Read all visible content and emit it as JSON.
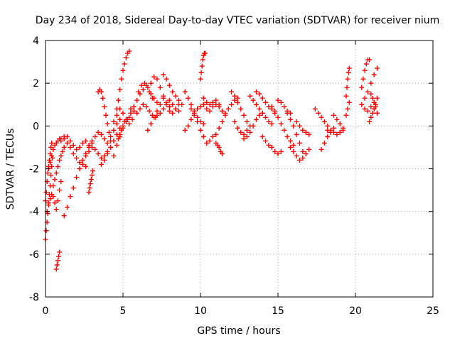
{
  "chart_data": {
    "type": "scatter",
    "title": "Day 234 of 2018, Sidereal Day-to-day VTEC variation (SDTVAR) for receiver nium",
    "xlabel": "GPS time / hours",
    "ylabel": "SDTVAR / TECUs",
    "xlim": [
      0,
      25
    ],
    "ylim": [
      -8,
      4
    ],
    "xticks": [
      0,
      5,
      10,
      15,
      20,
      25
    ],
    "yticks": [
      -8,
      -6,
      -4,
      -2,
      0,
      2,
      4
    ],
    "xtick_labels": [
      "0",
      "5",
      "10",
      "15",
      "20",
      "25"
    ],
    "ytick_labels": [
      "-8",
      "-6",
      "-4",
      "-2",
      "0",
      "2",
      "4"
    ],
    "grid": true,
    "marker": "+",
    "color": "#ff0000",
    "series": [
      {
        "name": "t0",
        "x": [
          0.0,
          0.05,
          0.1,
          0.15,
          0.2,
          0.25,
          0.3,
          0.35,
          0.4,
          0.45
        ],
        "y": [
          -5.3,
          -4.9,
          -4.5,
          -4.1,
          -3.6,
          -3.2,
          -2.8,
          -2.3,
          -1.9,
          -1.5
        ]
      },
      {
        "name": "t1",
        "x": [
          0.0,
          0.05,
          0.1,
          0.15,
          0.2,
          0.25,
          0.3,
          0.35,
          0.4
        ],
        "y": [
          -3.5,
          -3.1,
          -2.6,
          -2.2,
          -1.9,
          -1.6,
          -1.3,
          -1.0,
          -0.8
        ]
      },
      {
        "name": "t2",
        "x": [
          0.1,
          0.2,
          0.3,
          0.4,
          0.5,
          0.6,
          0.7,
          0.8,
          0.9,
          1.0
        ],
        "y": [
          -4.0,
          -3.7,
          -3.4,
          -3.2,
          -3.3,
          -3.6,
          -3.9,
          -3.5,
          -3.0,
          -2.6
        ]
      },
      {
        "name": "t3",
        "x": [
          0.2,
          0.3,
          0.4,
          0.5,
          0.6,
          0.7,
          0.8,
          0.9,
          1.0
        ],
        "y": [
          -2.0,
          -1.7,
          -1.4,
          -1.1,
          -0.9,
          -0.8,
          -0.7,
          -0.6,
          -0.6
        ]
      },
      {
        "name": "t4",
        "x": [
          0.7,
          0.75,
          0.8,
          0.85,
          0.9
        ],
        "y": [
          -6.7,
          -6.5,
          -6.3,
          -6.1,
          -5.9
        ]
      },
      {
        "name": "t5",
        "x": [
          0.5,
          0.6,
          0.7,
          0.8,
          0.9,
          1.0,
          1.1,
          1.2
        ],
        "y": [
          -2.8,
          -2.5,
          -2.2,
          -1.9,
          -1.6,
          -1.4,
          -1.2,
          -1.0
        ]
      },
      {
        "name": "t6",
        "x": [
          1.2,
          1.4,
          1.6,
          1.8,
          2.0,
          2.2,
          2.4,
          2.6,
          2.8,
          3.0
        ],
        "y": [
          -4.2,
          -3.8,
          -3.3,
          -2.9,
          -2.4,
          -2.0,
          -1.6,
          -1.3,
          -1.0,
          -0.8
        ]
      },
      {
        "name": "t7",
        "x": [
          1.2,
          1.4,
          1.6,
          1.8,
          2.0,
          2.2,
          2.4,
          2.6
        ],
        "y": [
          -0.5,
          -0.8,
          -1.0,
          -1.3,
          -1.5,
          -1.7,
          -1.8,
          -1.9
        ]
      },
      {
        "name": "t8",
        "x": [
          1.0,
          1.2,
          1.4,
          1.6,
          1.8,
          2.0,
          2.2,
          2.4,
          2.6,
          2.8
        ],
        "y": [
          -0.7,
          -0.6,
          -0.5,
          -0.7,
          -0.9,
          -1.1,
          -1.0,
          -0.8,
          -0.7,
          -0.9
        ]
      },
      {
        "name": "t9",
        "x": [
          2.8,
          2.85,
          2.9,
          2.95,
          3.0,
          3.05
        ],
        "y": [
          -3.1,
          -2.9,
          -2.7,
          -2.5,
          -2.3,
          -2.1
        ]
      },
      {
        "name": "t10",
        "x": [
          2.6,
          2.8,
          3.0,
          3.2,
          3.4,
          3.6,
          3.8,
          4.0,
          4.2
        ],
        "y": [
          -1.4,
          -1.2,
          -1.0,
          -1.1,
          -1.3,
          -1.5,
          -1.4,
          -1.2,
          -1.0
        ]
      },
      {
        "name": "t11",
        "x": [
          3.4,
          3.5,
          3.6,
          3.7,
          3.8,
          3.9,
          4.0,
          4.1,
          4.2
        ],
        "y": [
          1.6,
          1.7,
          1.6,
          1.3,
          0.9,
          0.5,
          0.1,
          -0.3,
          -0.7
        ]
      },
      {
        "name": "t12",
        "x": [
          3.0,
          3.2,
          3.4,
          3.6,
          3.8,
          4.0,
          4.2,
          4.4,
          4.6,
          4.8
        ],
        "y": [
          -0.7,
          -0.5,
          -0.3,
          -0.4,
          -0.6,
          -0.8,
          -0.5,
          -0.2,
          0.1,
          0.3
        ]
      },
      {
        "name": "t13",
        "x": [
          3.6,
          3.8,
          4.0,
          4.2,
          4.4,
          4.6,
          4.8
        ],
        "y": [
          -1.8,
          -1.6,
          -1.3,
          -1.0,
          -0.7,
          -0.4,
          -0.1
        ]
      },
      {
        "name": "t14",
        "x": [
          4.4,
          4.6,
          4.8,
          5.0,
          5.2,
          5.4
        ],
        "y": [
          0.2,
          0.5,
          0.8,
          0.6,
          0.3,
          0.1
        ]
      },
      {
        "name": "t15",
        "x": [
          4.6,
          4.7,
          4.8,
          4.9,
          5.0,
          5.1,
          5.2,
          5.3,
          5.4
        ],
        "y": [
          0.8,
          1.2,
          1.7,
          2.2,
          2.6,
          2.9,
          3.2,
          3.4,
          3.5
        ]
      },
      {
        "name": "t16",
        "x": [
          4.4,
          4.6,
          4.8,
          5.0,
          5.2,
          5.4,
          5.6
        ],
        "y": [
          -1.4,
          -0.9,
          -0.5,
          -0.1,
          0.2,
          0.4,
          0.3
        ]
      },
      {
        "name": "t17",
        "x": [
          4.7,
          4.8,
          4.9,
          5.0,
          5.1
        ],
        "y": [
          -0.6,
          -0.4,
          -0.2,
          0.0,
          0.2
        ]
      },
      {
        "name": "t18",
        "x": [
          5.3,
          5.5,
          5.7,
          5.9,
          6.1,
          6.3,
          6.5,
          6.7,
          6.9
        ],
        "y": [
          0.3,
          0.6,
          0.9,
          1.2,
          1.5,
          1.7,
          1.9,
          1.6,
          1.3
        ]
      },
      {
        "name": "t19",
        "x": [
          5.5,
          5.7,
          5.9,
          6.1,
          6.3,
          6.5,
          6.7,
          6.9,
          7.1
        ],
        "y": [
          0.8,
          0.7,
          0.6,
          0.8,
          1.0,
          0.9,
          0.7,
          0.5,
          0.4
        ]
      },
      {
        "name": "t20",
        "x": [
          6.0,
          6.2,
          6.4,
          6.6,
          6.8,
          7.0,
          7.2
        ],
        "y": [
          1.6,
          1.9,
          2.0,
          1.8,
          1.5,
          1.3,
          1.1
        ]
      },
      {
        "name": "t21",
        "x": [
          6.8,
          7.0,
          7.2,
          7.4,
          7.6,
          7.8,
          8.0
        ],
        "y": [
          2.0,
          2.3,
          2.2,
          1.8,
          1.4,
          1.1,
          0.9
        ]
      },
      {
        "name": "t22",
        "x": [
          6.6,
          6.8,
          7.0,
          7.2,
          7.4,
          7.6
        ],
        "y": [
          -0.2,
          0.1,
          0.4,
          0.7,
          1.0,
          1.3
        ]
      },
      {
        "name": "t23",
        "x": [
          7.2,
          7.4,
          7.6,
          7.8,
          8.0,
          8.2,
          8.4,
          8.6
        ],
        "y": [
          0.5,
          0.6,
          0.8,
          1.0,
          1.2,
          1.0,
          0.8,
          0.7
        ]
      },
      {
        "name": "t24",
        "x": [
          7.6,
          7.8,
          8.0,
          8.2,
          8.4,
          8.6,
          8.8
        ],
        "y": [
          2.4,
          2.2,
          1.9,
          1.6,
          1.4,
          1.2,
          1.0
        ]
      },
      {
        "name": "t25",
        "x": [
          8.0,
          8.2,
          8.4,
          8.6
        ],
        "y": [
          0.7,
          0.6,
          0.8,
          1.0
        ]
      },
      {
        "name": "t26",
        "x": [
          9.0,
          9.2,
          9.4,
          9.6,
          9.8,
          10.0,
          10.2
        ],
        "y": [
          1.6,
          1.3,
          1.0,
          0.7,
          0.4,
          0.2,
          0.1
        ]
      },
      {
        "name": "t27",
        "x": [
          9.0,
          9.2,
          9.4,
          9.6,
          9.8,
          10.0,
          10.2
        ],
        "y": [
          -0.2,
          0.0,
          0.3,
          0.6,
          0.8,
          0.9,
          1.0
        ]
      },
      {
        "name": "t28",
        "x": [
          9.4,
          9.6,
          9.8,
          10.0,
          10.2,
          10.4,
          10.6,
          10.8
        ],
        "y": [
          0.8,
          0.5,
          0.2,
          -0.2,
          -0.5,
          -0.8,
          -0.7,
          -0.5
        ]
      },
      {
        "name": "t29",
        "x": [
          10.0,
          10.05,
          10.1,
          10.15,
          10.2,
          10.25,
          10.3
        ],
        "y": [
          2.2,
          2.5,
          2.8,
          3.1,
          3.3,
          3.4,
          3.4
        ]
      },
      {
        "name": "t30",
        "x": [
          10.2,
          10.4,
          10.6,
          10.8,
          11.0,
          11.2
        ],
        "y": [
          1.3,
          1.1,
          1.0,
          1.1,
          1.2,
          1.0
        ]
      },
      {
        "name": "t31",
        "x": [
          10.4,
          10.6,
          10.8,
          11.0,
          11.2,
          11.4,
          11.6
        ],
        "y": [
          0.8,
          0.7,
          0.9,
          1.0,
          0.9,
          0.7,
          0.6
        ]
      },
      {
        "name": "t32",
        "x": [
          11.0,
          11.2,
          11.4,
          11.6,
          11.8,
          12.0,
          12.2,
          12.4
        ],
        "y": [
          -0.4,
          -0.1,
          0.2,
          0.5,
          0.8,
          1.0,
          1.2,
          1.3
        ]
      },
      {
        "name": "t33",
        "x": [
          11.0,
          11.1,
          11.2,
          11.3,
          11.4
        ],
        "y": [
          -0.8,
          -0.9,
          -1.0,
          -1.2,
          -1.3
        ]
      },
      {
        "name": "t34",
        "x": [
          12.0,
          12.2,
          12.4,
          12.6,
          12.8,
          13.0
        ],
        "y": [
          1.6,
          1.4,
          1.1,
          0.8,
          0.5,
          0.2
        ]
      },
      {
        "name": "t35",
        "x": [
          12.2,
          12.4,
          12.6,
          12.8,
          13.0,
          13.2
        ],
        "y": [
          0.2,
          -0.1,
          -0.3,
          -0.4,
          -0.2,
          0.0
        ]
      },
      {
        "name": "t36",
        "x": [
          12.8,
          13.0,
          13.2,
          13.4,
          13.6,
          13.8,
          14.0
        ],
        "y": [
          -0.6,
          -0.5,
          -0.3,
          0.0,
          0.3,
          0.5,
          0.6
        ]
      },
      {
        "name": "t37",
        "x": [
          13.2,
          13.4,
          13.6,
          13.8,
          14.0,
          14.2,
          14.4,
          14.6
        ],
        "y": [
          1.4,
          1.2,
          1.0,
          0.8,
          0.6,
          0.4,
          0.2,
          0.1
        ]
      },
      {
        "name": "t38",
        "x": [
          13.6,
          13.8,
          14.0,
          14.2,
          14.4,
          14.6,
          14.8
        ],
        "y": [
          1.6,
          1.5,
          1.3,
          1.1,
          0.9,
          0.8,
          0.6
        ]
      },
      {
        "name": "t39",
        "x": [
          14.0,
          14.2,
          14.4,
          14.6,
          14.8,
          15.0,
          15.2
        ],
        "y": [
          -0.5,
          -0.7,
          -0.9,
          -1.0,
          -1.2,
          -1.3,
          -1.2
        ]
      },
      {
        "name": "t40",
        "x": [
          14.6,
          14.8,
          15.0,
          15.2,
          15.4,
          15.6,
          15.8,
          16.0
        ],
        "y": [
          0.9,
          0.7,
          0.4,
          0.1,
          -0.2,
          -0.5,
          -0.7,
          -0.9
        ]
      },
      {
        "name": "t41",
        "x": [
          15.0,
          15.2,
          15.4,
          15.6,
          15.8
        ],
        "y": [
          1.2,
          1.1,
          0.9,
          0.7,
          0.6
        ]
      },
      {
        "name": "t42",
        "x": [
          15.6,
          15.8,
          16.0,
          16.2,
          16.4,
          16.6
        ],
        "y": [
          0.6,
          0.3,
          0.0,
          -0.4,
          -0.8,
          -1.2
        ]
      },
      {
        "name": "t43",
        "x": [
          15.8,
          16.0,
          16.2,
          16.4,
          16.6,
          16.8,
          17.0
        ],
        "y": [
          -1.0,
          -1.2,
          -1.4,
          -1.6,
          -1.5,
          -1.3,
          -1.1
        ]
      },
      {
        "name": "t44",
        "x": [
          16.2,
          16.4,
          16.6,
          16.8,
          17.0
        ],
        "y": [
          0.2,
          0.0,
          -0.2,
          -0.3,
          -0.4
        ]
      },
      {
        "name": "t45",
        "x": [
          17.4,
          17.6,
          17.8,
          18.0,
          18.2,
          18.4
        ],
        "y": [
          0.8,
          0.6,
          0.4,
          0.2,
          0.0,
          -0.2
        ]
      },
      {
        "name": "t46",
        "x": [
          17.8,
          18.0,
          18.2,
          18.4,
          18.6
        ],
        "y": [
          -1.1,
          -0.8,
          -0.5,
          -0.3,
          -0.1
        ]
      },
      {
        "name": "t47",
        "x": [
          18.2,
          18.4,
          18.6,
          18.8,
          19.0,
          19.2
        ],
        "y": [
          -0.2,
          -0.3,
          -0.3,
          -0.4,
          -0.3,
          -0.2
        ]
      },
      {
        "name": "t48",
        "x": [
          18.6,
          18.8,
          19.0,
          19.2
        ],
        "y": [
          0.5,
          0.3,
          0.1,
          -0.1
        ]
      },
      {
        "name": "t49",
        "x": [
          19.4,
          19.45,
          19.5,
          19.55,
          19.6
        ],
        "y": [
          1.4,
          1.8,
          2.2,
          2.5,
          2.7
        ]
      },
      {
        "name": "t50",
        "x": [
          19.4,
          19.5,
          19.6
        ],
        "y": [
          0.5,
          0.8,
          1.1
        ]
      },
      {
        "name": "t51",
        "x": [
          20.4,
          20.5,
          20.6,
          20.7,
          20.8,
          20.9
        ],
        "y": [
          1.8,
          2.2,
          2.6,
          2.9,
          3.1,
          3.1
        ]
      },
      {
        "name": "t52",
        "x": [
          20.6,
          20.8,
          21.0,
          21.2,
          21.4
        ],
        "y": [
          1.3,
          1.6,
          2.0,
          2.4,
          2.7
        ]
      },
      {
        "name": "t53",
        "x": [
          20.4,
          20.6,
          20.8,
          21.0,
          21.2,
          21.4
        ],
        "y": [
          1.0,
          0.8,
          0.7,
          0.9,
          1.1,
          1.3
        ]
      },
      {
        "name": "t54",
        "x": [
          20.9,
          21.0,
          21.1,
          21.2,
          21.3
        ],
        "y": [
          0.2,
          0.4,
          0.6,
          0.8,
          1.0
        ]
      },
      {
        "name": "t55",
        "x": [
          21.0,
          21.1,
          21.2,
          21.3,
          21.4
        ],
        "y": [
          1.5,
          1.3,
          1.1,
          0.9,
          0.6
        ]
      }
    ]
  }
}
